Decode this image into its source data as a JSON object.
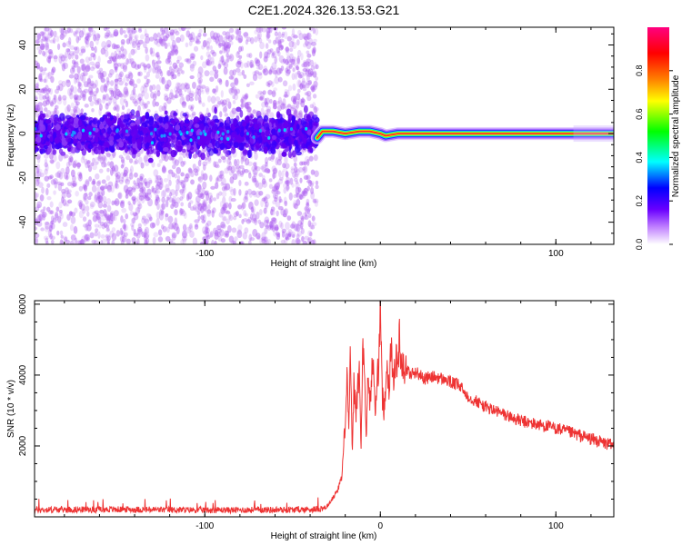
{
  "figure": {
    "title": "C2E1.2024.326.13.53.G21"
  },
  "chart_data": [
    {
      "type": "heatmap",
      "title": "C2E1.2024.326.13.53.G21",
      "xlabel": "Height of straight line (km)",
      "ylabel": "Frequency (Hz)",
      "xlim": [
        -197,
        133
      ],
      "ylim": [
        -50,
        48
      ],
      "xticks": [
        -100,
        100
      ],
      "yticks": [
        -40,
        -20,
        0,
        20,
        40
      ],
      "colorbar": {
        "label": "Normalized spectral amplitude",
        "range": [
          0.0,
          1.0
        ],
        "ticks": [
          "0.0",
          "0.2",
          "0.4",
          "0.6",
          "0.8"
        ],
        "colors": [
          "#ffffff",
          "#8a2be2",
          "#0000ff",
          "#00ffff",
          "#00ff00",
          "#ffff00",
          "#ff8000",
          "#ff0000",
          "#ff0080"
        ]
      },
      "description_points": {
        "noise_region_x": [
          -197,
          -36
        ],
        "noise_band_center_hz": 0,
        "noise_band_halfwidth_hz": 10,
        "signal_x": [
          -36,
          133
        ],
        "signal_track_hz": [
          {
            "x": -36,
            "y": -2
          },
          {
            "x": -33,
            "y": 1
          },
          {
            "x": -27,
            "y": 1
          },
          {
            "x": -20,
            "y": 0
          },
          {
            "x": -12,
            "y": 1
          },
          {
            "x": -6,
            "y": 1
          },
          {
            "x": 0,
            "y": 0
          },
          {
            "x": 3,
            "y": -1
          },
          {
            "x": 10,
            "y": 0
          },
          {
            "x": 133,
            "y": 0
          }
        ]
      }
    },
    {
      "type": "line",
      "title": "",
      "xlabel": "Height of straight line (km)",
      "ylabel": "SNR (10 * v/v)",
      "xlim": [
        -197,
        133
      ],
      "ylim": [
        0,
        6100
      ],
      "xticks": [
        -100,
        0,
        100
      ],
      "yticks": [
        2000,
        4000,
        6000
      ],
      "series": [
        {
          "color": "#ee3333",
          "x": [
            -197,
            -150,
            -100,
            -50,
            -35,
            -30,
            -25,
            -22,
            -20,
            -19,
            -18,
            -17,
            -16,
            -15,
            -14,
            -13,
            -12,
            -11,
            -10,
            -9,
            -8,
            -7,
            -6,
            -5,
            -4,
            -3,
            -2,
            -1,
            0,
            1,
            2,
            3,
            4,
            5,
            6,
            7,
            8,
            9,
            10,
            11,
            12,
            13,
            14,
            15,
            17,
            20,
            25,
            30,
            35,
            40,
            45,
            50,
            60,
            70,
            80,
            90,
            100,
            110,
            120,
            133
          ],
          "y": [
            200,
            210,
            190,
            200,
            220,
            300,
            700,
            1100,
            2700,
            4200,
            2500,
            4800,
            1500,
            3900,
            2900,
            3500,
            4200,
            1800,
            5000,
            3700,
            2200,
            4200,
            3100,
            3900,
            4600,
            2800,
            3700,
            4300,
            6000,
            3500,
            3000,
            3800,
            4300,
            3600,
            4800,
            4100,
            4000,
            4500,
            4200,
            5200,
            4300,
            4400,
            4100,
            4200,
            4000,
            4100,
            3900,
            3950,
            3900,
            3800,
            3700,
            3400,
            3100,
            2900,
            2700,
            2600,
            2500,
            2350,
            2200,
            2000
          ]
        }
      ]
    }
  ]
}
